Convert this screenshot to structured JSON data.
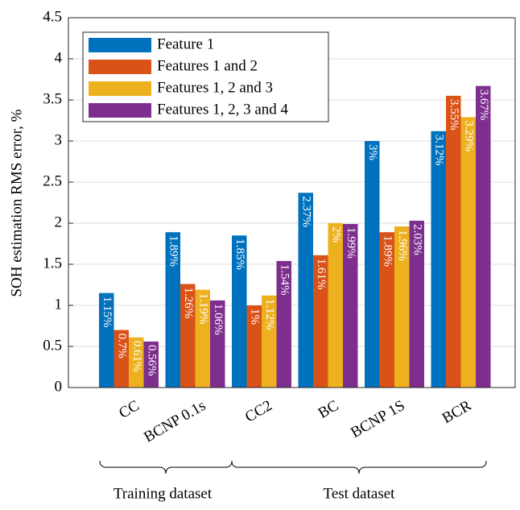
{
  "chart_data": {
    "type": "bar",
    "ylabel": "SOH estimation RMS error, %",
    "categories": [
      "CC",
      "BCNP 0.1s",
      "CC2",
      "BC",
      "BCNP 1S",
      "BCR"
    ],
    "series": [
      {
        "name": "Feature 1",
        "color": "#0072bd",
        "values": [
          1.15,
          1.89,
          1.85,
          2.37,
          3,
          3.12
        ],
        "value_labels": [
          "1.15%",
          "1.89%",
          "1.85%",
          "2.37%",
          "3%",
          "3.12%"
        ]
      },
      {
        "name": "Features 1 and 2",
        "color": "#d95319",
        "values": [
          0.7,
          1.26,
          1,
          1.61,
          1.89,
          3.55
        ],
        "value_labels": [
          "0.7%",
          "1.26%",
          "1%",
          "1.61%",
          "1.89%",
          "3.55%"
        ]
      },
      {
        "name": "Features 1, 2 and 3",
        "color": "#edb120",
        "values": [
          0.61,
          1.19,
          1.12,
          2,
          1.96,
          3.29
        ],
        "value_labels": [
          "0.61%",
          "1.19%",
          "1.12%",
          "2%",
          "1.96%",
          "3.29%"
        ]
      },
      {
        "name": "Features 1, 2, 3 and 4",
        "color": "#7e2f8e",
        "values": [
          0.56,
          1.06,
          1.54,
          1.99,
          2.03,
          3.67
        ],
        "value_labels": [
          "0.56%",
          "1.06%",
          "1.54%",
          "1.99%",
          "2.03%",
          "3.67%"
        ]
      }
    ],
    "ylim": [
      0,
      4.5
    ],
    "yticks": [
      0,
      0.5,
      1,
      1.5,
      2,
      2.5,
      3,
      3.5,
      4,
      4.5
    ],
    "grid": true,
    "legend": "upper left",
    "annotations": [
      "Training dataset",
      "Test dataset"
    ]
  }
}
